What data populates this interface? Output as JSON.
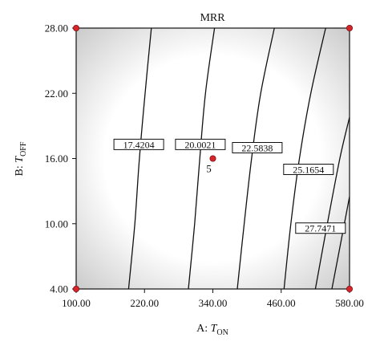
{
  "chart_data": {
    "type": "contour",
    "title": "MRR",
    "xlabel": {
      "prefix": "A: ",
      "main": "T",
      "sub": "ON"
    },
    "ylabel": {
      "prefix": "B: ",
      "main": "T",
      "sub": "OFF"
    },
    "xlim": [
      100,
      580
    ],
    "ylim": [
      4,
      28
    ],
    "xticks": [
      "100.00",
      "220.00",
      "340.00",
      "460.00",
      "580.00"
    ],
    "xtick_values": [
      100,
      220,
      340,
      460,
      580
    ],
    "yticks": [
      "4.00",
      "10.00",
      "16.00",
      "22.00",
      "28.00"
    ],
    "ytick_values": [
      4,
      10,
      16,
      22,
      28
    ],
    "background": {
      "center": "#ffffff",
      "edge": "#c8c8c8"
    },
    "contours": [
      {
        "label": "17.4204",
        "points": [
          [
            192,
            4
          ],
          [
            203,
            10
          ],
          [
            211,
            16
          ],
          [
            221,
            22
          ],
          [
            232,
            28
          ]
        ],
        "label_at": [
          210,
          17.3
        ]
      },
      {
        "label": "20.0021",
        "points": [
          [
            297,
            4
          ],
          [
            308,
            10
          ],
          [
            317,
            16
          ],
          [
            327,
            22
          ],
          [
            343,
            28
          ]
        ],
        "label_at": [
          318,
          17.3
        ]
      },
      {
        "label": "22.5838",
        "points": [
          [
            383,
            4
          ],
          [
            395,
            10
          ],
          [
            408,
            16
          ],
          [
            424,
            22
          ],
          [
            448,
            28
          ]
        ],
        "label_at": [
          418,
          17.0
        ]
      },
      {
        "label": "25.1654",
        "points": [
          [
            465,
            4
          ],
          [
            477,
            10
          ],
          [
            492,
            16
          ],
          [
            512,
            22
          ],
          [
            538,
            28
          ]
        ],
        "label_at": [
          508,
          15.0
        ]
      },
      {
        "label": "27.7471",
        "points": [
          [
            549,
            4
          ],
          [
            560,
            7
          ],
          [
            580,
            12.5
          ]
        ],
        "label_at": [
          529,
          9.6
        ]
      },
      {
        "label": "",
        "points": [
          [
            520,
            4
          ],
          [
            541,
            10
          ],
          [
            563,
            16
          ],
          [
            580,
            19.8
          ]
        ]
      }
    ],
    "design_points": [
      {
        "x": 100,
        "y": 4
      },
      {
        "x": 580,
        "y": 4
      },
      {
        "x": 100,
        "y": 28
      },
      {
        "x": 580,
        "y": 28
      }
    ],
    "center_point": {
      "x": 340,
      "y": 16,
      "label": "5"
    }
  }
}
